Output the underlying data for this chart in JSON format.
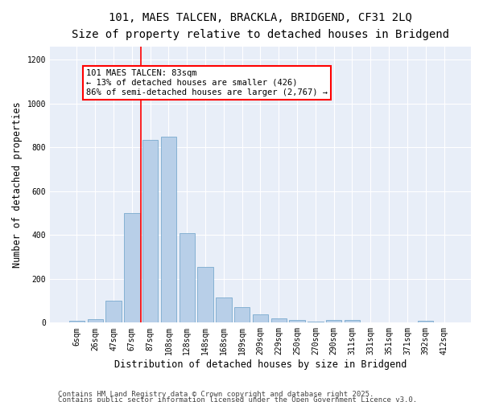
{
  "title_line1": "101, MAES TALCEN, BRACKLA, BRIDGEND, CF31 2LQ",
  "title_line2": "Size of property relative to detached houses in Bridgend",
  "xlabel": "Distribution of detached houses by size in Bridgend",
  "ylabel": "Number of detached properties",
  "categories": [
    "6sqm",
    "26sqm",
    "47sqm",
    "67sqm",
    "87sqm",
    "108sqm",
    "128sqm",
    "148sqm",
    "168sqm",
    "189sqm",
    "209sqm",
    "229sqm",
    "250sqm",
    "270sqm",
    "290sqm",
    "311sqm",
    "331sqm",
    "351sqm",
    "371sqm",
    "392sqm",
    "412sqm"
  ],
  "values": [
    10,
    15,
    100,
    500,
    835,
    850,
    410,
    255,
    115,
    70,
    38,
    18,
    12,
    5,
    14,
    12,
    3,
    2,
    1,
    10,
    2
  ],
  "bar_color": "#b8cfe8",
  "bar_edge_color": "#7aaace",
  "vline_color": "red",
  "annotation_text": "101 MAES TALCEN: 83sqm\n← 13% of detached houses are smaller (426)\n86% of semi-detached houses are larger (2,767) →",
  "annotation_box_color": "white",
  "annotation_box_edge": "red",
  "ylim": [
    0,
    1260
  ],
  "yticks": [
    0,
    200,
    400,
    600,
    800,
    1000,
    1200
  ],
  "bg_color": "#e8eef8",
  "footer_line1": "Contains HM Land Registry data © Crown copyright and database right 2025.",
  "footer_line2": "Contains public sector information licensed under the Open Government Licence v3.0.",
  "title_fontsize": 10,
  "subtitle_fontsize": 9,
  "axis_label_fontsize": 8.5,
  "tick_fontsize": 7,
  "annotation_fontsize": 7.5,
  "footer_fontsize": 6.5
}
